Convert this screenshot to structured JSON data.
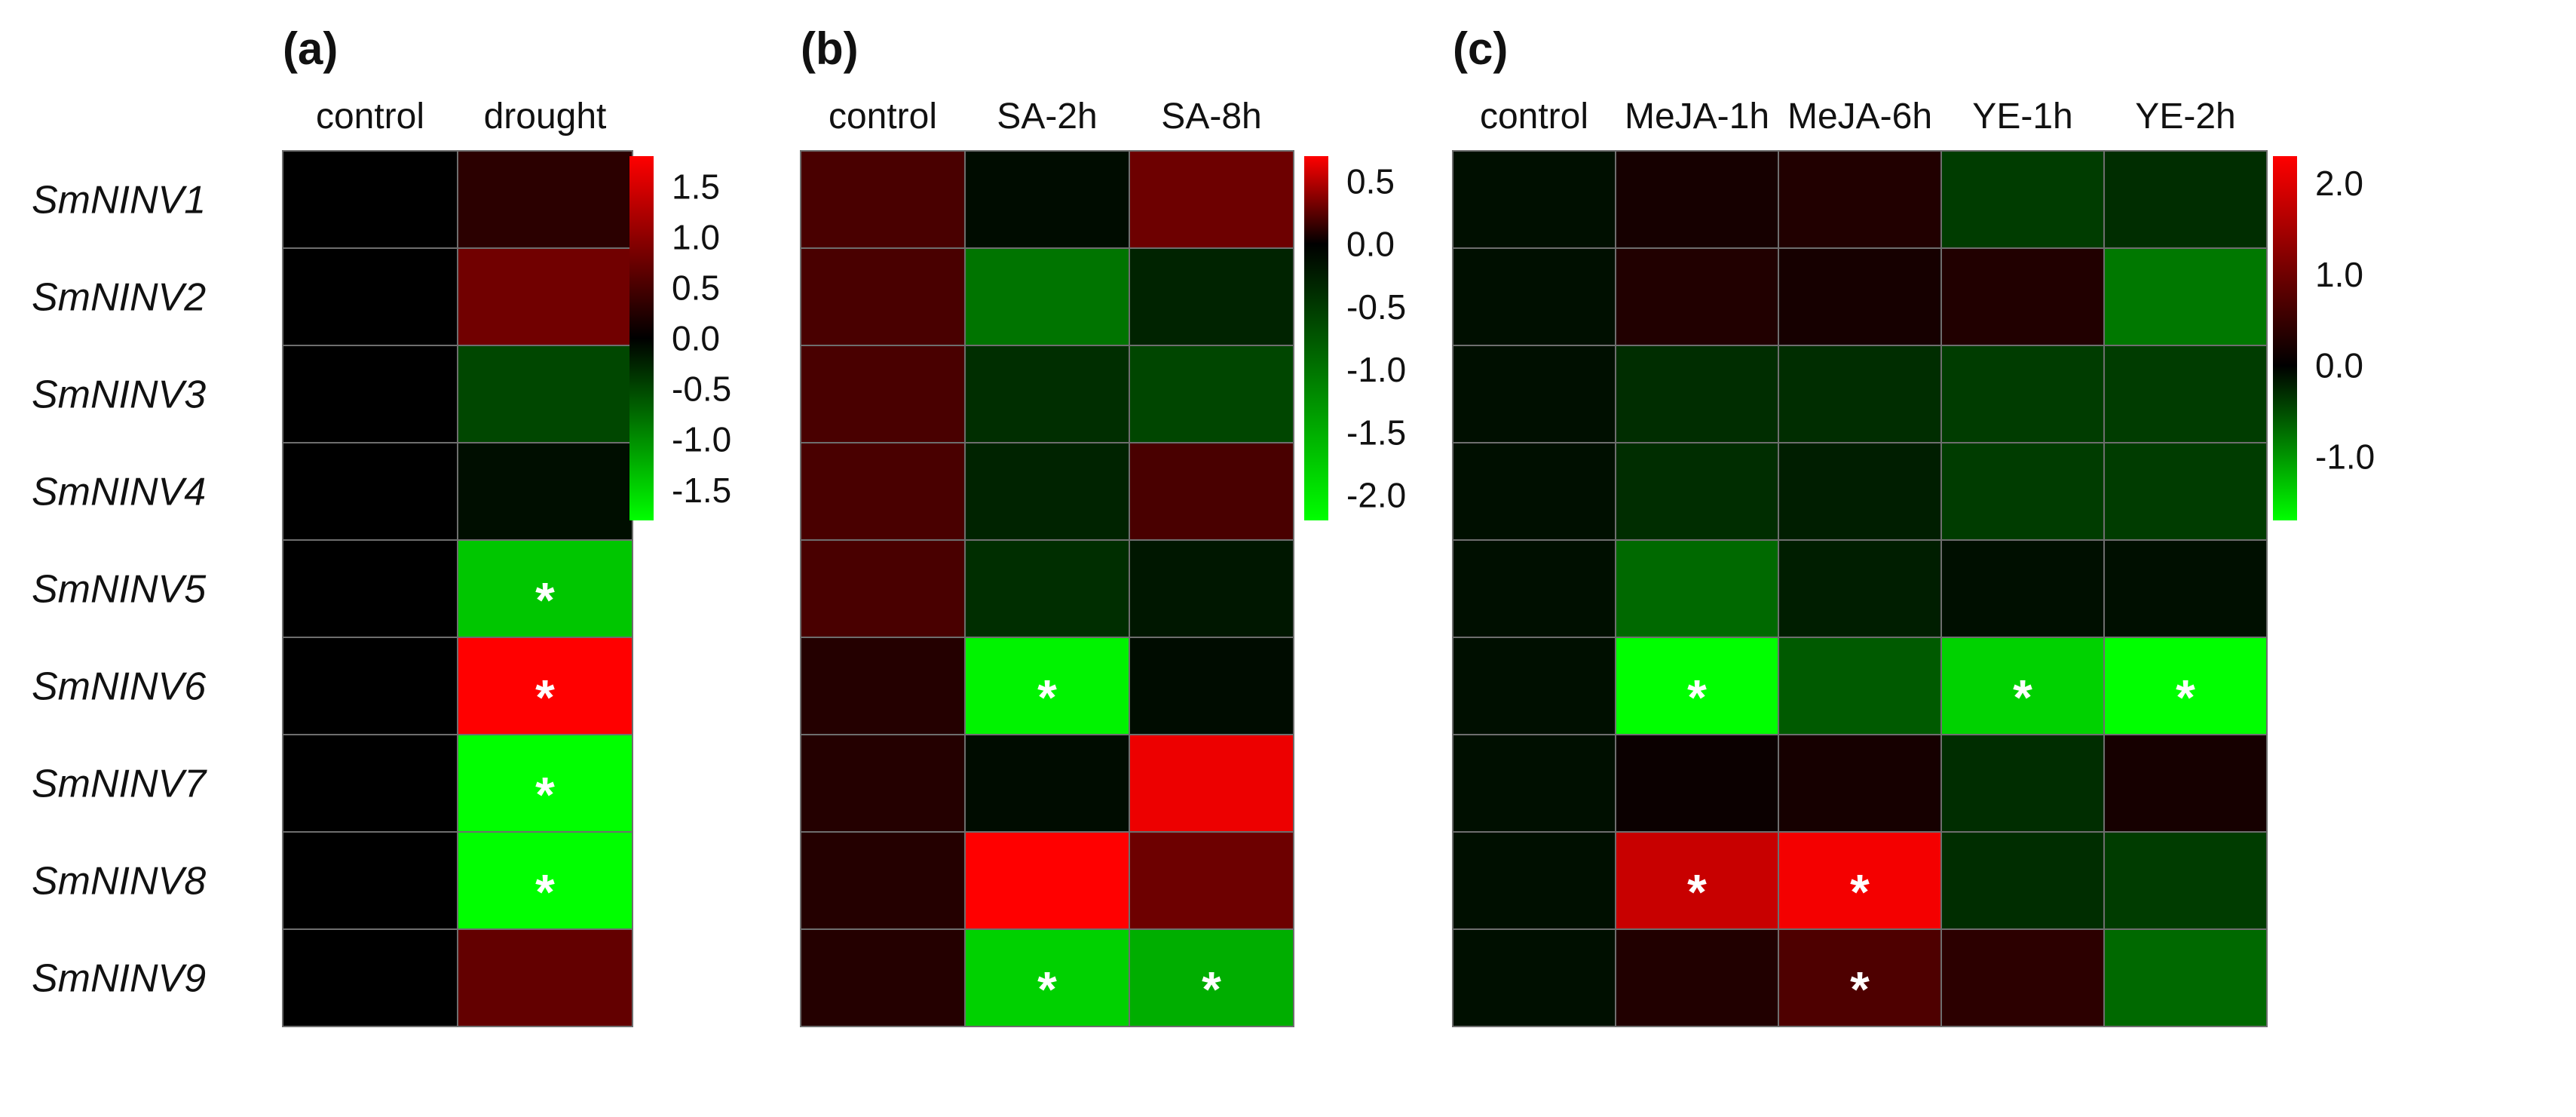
{
  "genes": [
    "SmNINV1",
    "SmNINV2",
    "SmNINV3",
    "SmNINV4",
    "SmNINV5",
    "SmNINV6",
    "SmNINV7",
    "SmNINV8",
    "SmNINV9"
  ],
  "significance_marker": "*",
  "chart_data": [
    {
      "type": "heatmap",
      "panel": "(a)",
      "columns": [
        "control",
        "drought"
      ],
      "rows": [
        "SmNINV1",
        "SmNINV2",
        "SmNINV3",
        "SmNINV4",
        "SmNINV5",
        "SmNINV6",
        "SmNINV7",
        "SmNINV8",
        "SmNINV9"
      ],
      "values": [
        [
          0,
          0.3
        ],
        [
          0,
          0.8
        ],
        [
          0,
          -0.5
        ],
        [
          0,
          -0.1
        ],
        [
          0,
          -1.4
        ],
        [
          0,
          1.8
        ],
        [
          0,
          -1.8
        ],
        [
          0,
          -1.8
        ],
        [
          0,
          0.7
        ]
      ],
      "significant": [
        [
          false,
          false
        ],
        [
          false,
          false
        ],
        [
          false,
          false
        ],
        [
          false,
          false
        ],
        [
          false,
          true
        ],
        [
          false,
          true
        ],
        [
          false,
          true
        ],
        [
          false,
          true
        ],
        [
          false,
          false
        ]
      ],
      "color_range": [
        -1.8,
        1.8
      ],
      "colorbar_ticks": [
        "1.5",
        "1.0",
        "0.5",
        "0.0",
        "-0.5",
        "-1.0",
        "-1.5"
      ],
      "colorbar_tick_values": [
        1.5,
        1.0,
        0.5,
        0.0,
        -0.5,
        -1.0,
        -1.5
      ],
      "colors": {
        "high": "#ff0000",
        "mid": "#000000",
        "low": "#00ff00"
      }
    },
    {
      "type": "heatmap",
      "panel": "(b)",
      "columns": [
        "control",
        "SA-2h",
        "SA-8h"
      ],
      "rows": [
        "SmNINV1",
        "SmNINV2",
        "SmNINV3",
        "SmNINV4",
        "SmNINV5",
        "SmNINV6",
        "SmNINV7",
        "SmNINV8",
        "SmNINV9"
      ],
      "values": [
        [
          0.2,
          -0.1,
          0.3
        ],
        [
          0.2,
          -1.0,
          -0.3
        ],
        [
          0.2,
          -0.4,
          -0.6
        ],
        [
          0.2,
          -0.3,
          0.2
        ],
        [
          0.2,
          -0.4,
          -0.2
        ],
        [
          0.1,
          -2.1,
          -0.1
        ],
        [
          0.1,
          -0.1,
          0.65
        ],
        [
          0.1,
          0.75,
          0.3
        ],
        [
          0.1,
          -1.8,
          -1.5
        ]
      ],
      "significant": [
        [
          false,
          false,
          false
        ],
        [
          false,
          false,
          false
        ],
        [
          false,
          false,
          false
        ],
        [
          false,
          false,
          false
        ],
        [
          false,
          false,
          false
        ],
        [
          false,
          true,
          false
        ],
        [
          false,
          false,
          false
        ],
        [
          false,
          false,
          false
        ],
        [
          false,
          true,
          true
        ]
      ],
      "color_range": [
        -2.2,
        0.7
      ],
      "colorbar_ticks": [
        "0.5",
        "0.0",
        "-0.5",
        "-1.0",
        "-1.5",
        "-2.0"
      ],
      "colorbar_tick_values": [
        0.5,
        0.0,
        -0.5,
        -1.0,
        -1.5,
        -2.0
      ],
      "colors": {
        "high": "#ff0000",
        "mid": "#000000",
        "low": "#00ff00"
      }
    },
    {
      "type": "heatmap",
      "panel": "(c)",
      "columns": [
        "control",
        "MeJA-1h",
        "MeJA-6h",
        "YE-1h",
        "YE-2h"
      ],
      "rows": [
        "SmNINV1",
        "SmNINV2",
        "SmNINV3",
        "SmNINV4",
        "SmNINV5",
        "SmNINV6",
        "SmNINV7",
        "SmNINV8",
        "SmNINV9"
      ],
      "values": [
        [
          -0.1,
          0.2,
          0.3,
          -0.4,
          -0.3
        ],
        [
          -0.1,
          0.3,
          0.2,
          0.3,
          -0.8
        ],
        [
          -0.1,
          -0.3,
          -0.3,
          -0.4,
          -0.4
        ],
        [
          -0.1,
          -0.3,
          -0.2,
          -0.4,
          -0.4
        ],
        [
          -0.1,
          -0.7,
          -0.2,
          -0.1,
          -0.1
        ],
        [
          -0.1,
          -1.7,
          -0.6,
          -1.4,
          -1.7
        ],
        [
          -0.1,
          0.1,
          0.2,
          -0.3,
          0.2
        ],
        [
          -0.1,
          1.8,
          2.2,
          -0.3,
          -0.4
        ],
        [
          -0.1,
          0.3,
          0.7,
          0.4,
          -0.7
        ]
      ],
      "significant": [
        [
          false,
          false,
          false,
          false,
          false
        ],
        [
          false,
          false,
          false,
          false,
          false
        ],
        [
          false,
          false,
          false,
          false,
          false
        ],
        [
          false,
          false,
          false,
          false,
          false
        ],
        [
          false,
          false,
          false,
          false,
          false
        ],
        [
          false,
          true,
          false,
          true,
          true
        ],
        [
          false,
          false,
          false,
          false,
          false
        ],
        [
          false,
          true,
          true,
          false,
          false
        ],
        [
          false,
          false,
          true,
          false,
          false
        ]
      ],
      "color_range": [
        -1.7,
        2.3
      ],
      "colorbar_ticks": [
        "2.0",
        "1.0",
        "0.0",
        "-1.0"
      ],
      "colorbar_tick_values": [
        2.0,
        1.0,
        0.0,
        -1.0
      ],
      "colors": {
        "high": "#ff0000",
        "mid": "#000000",
        "low": "#00ff00"
      }
    }
  ]
}
